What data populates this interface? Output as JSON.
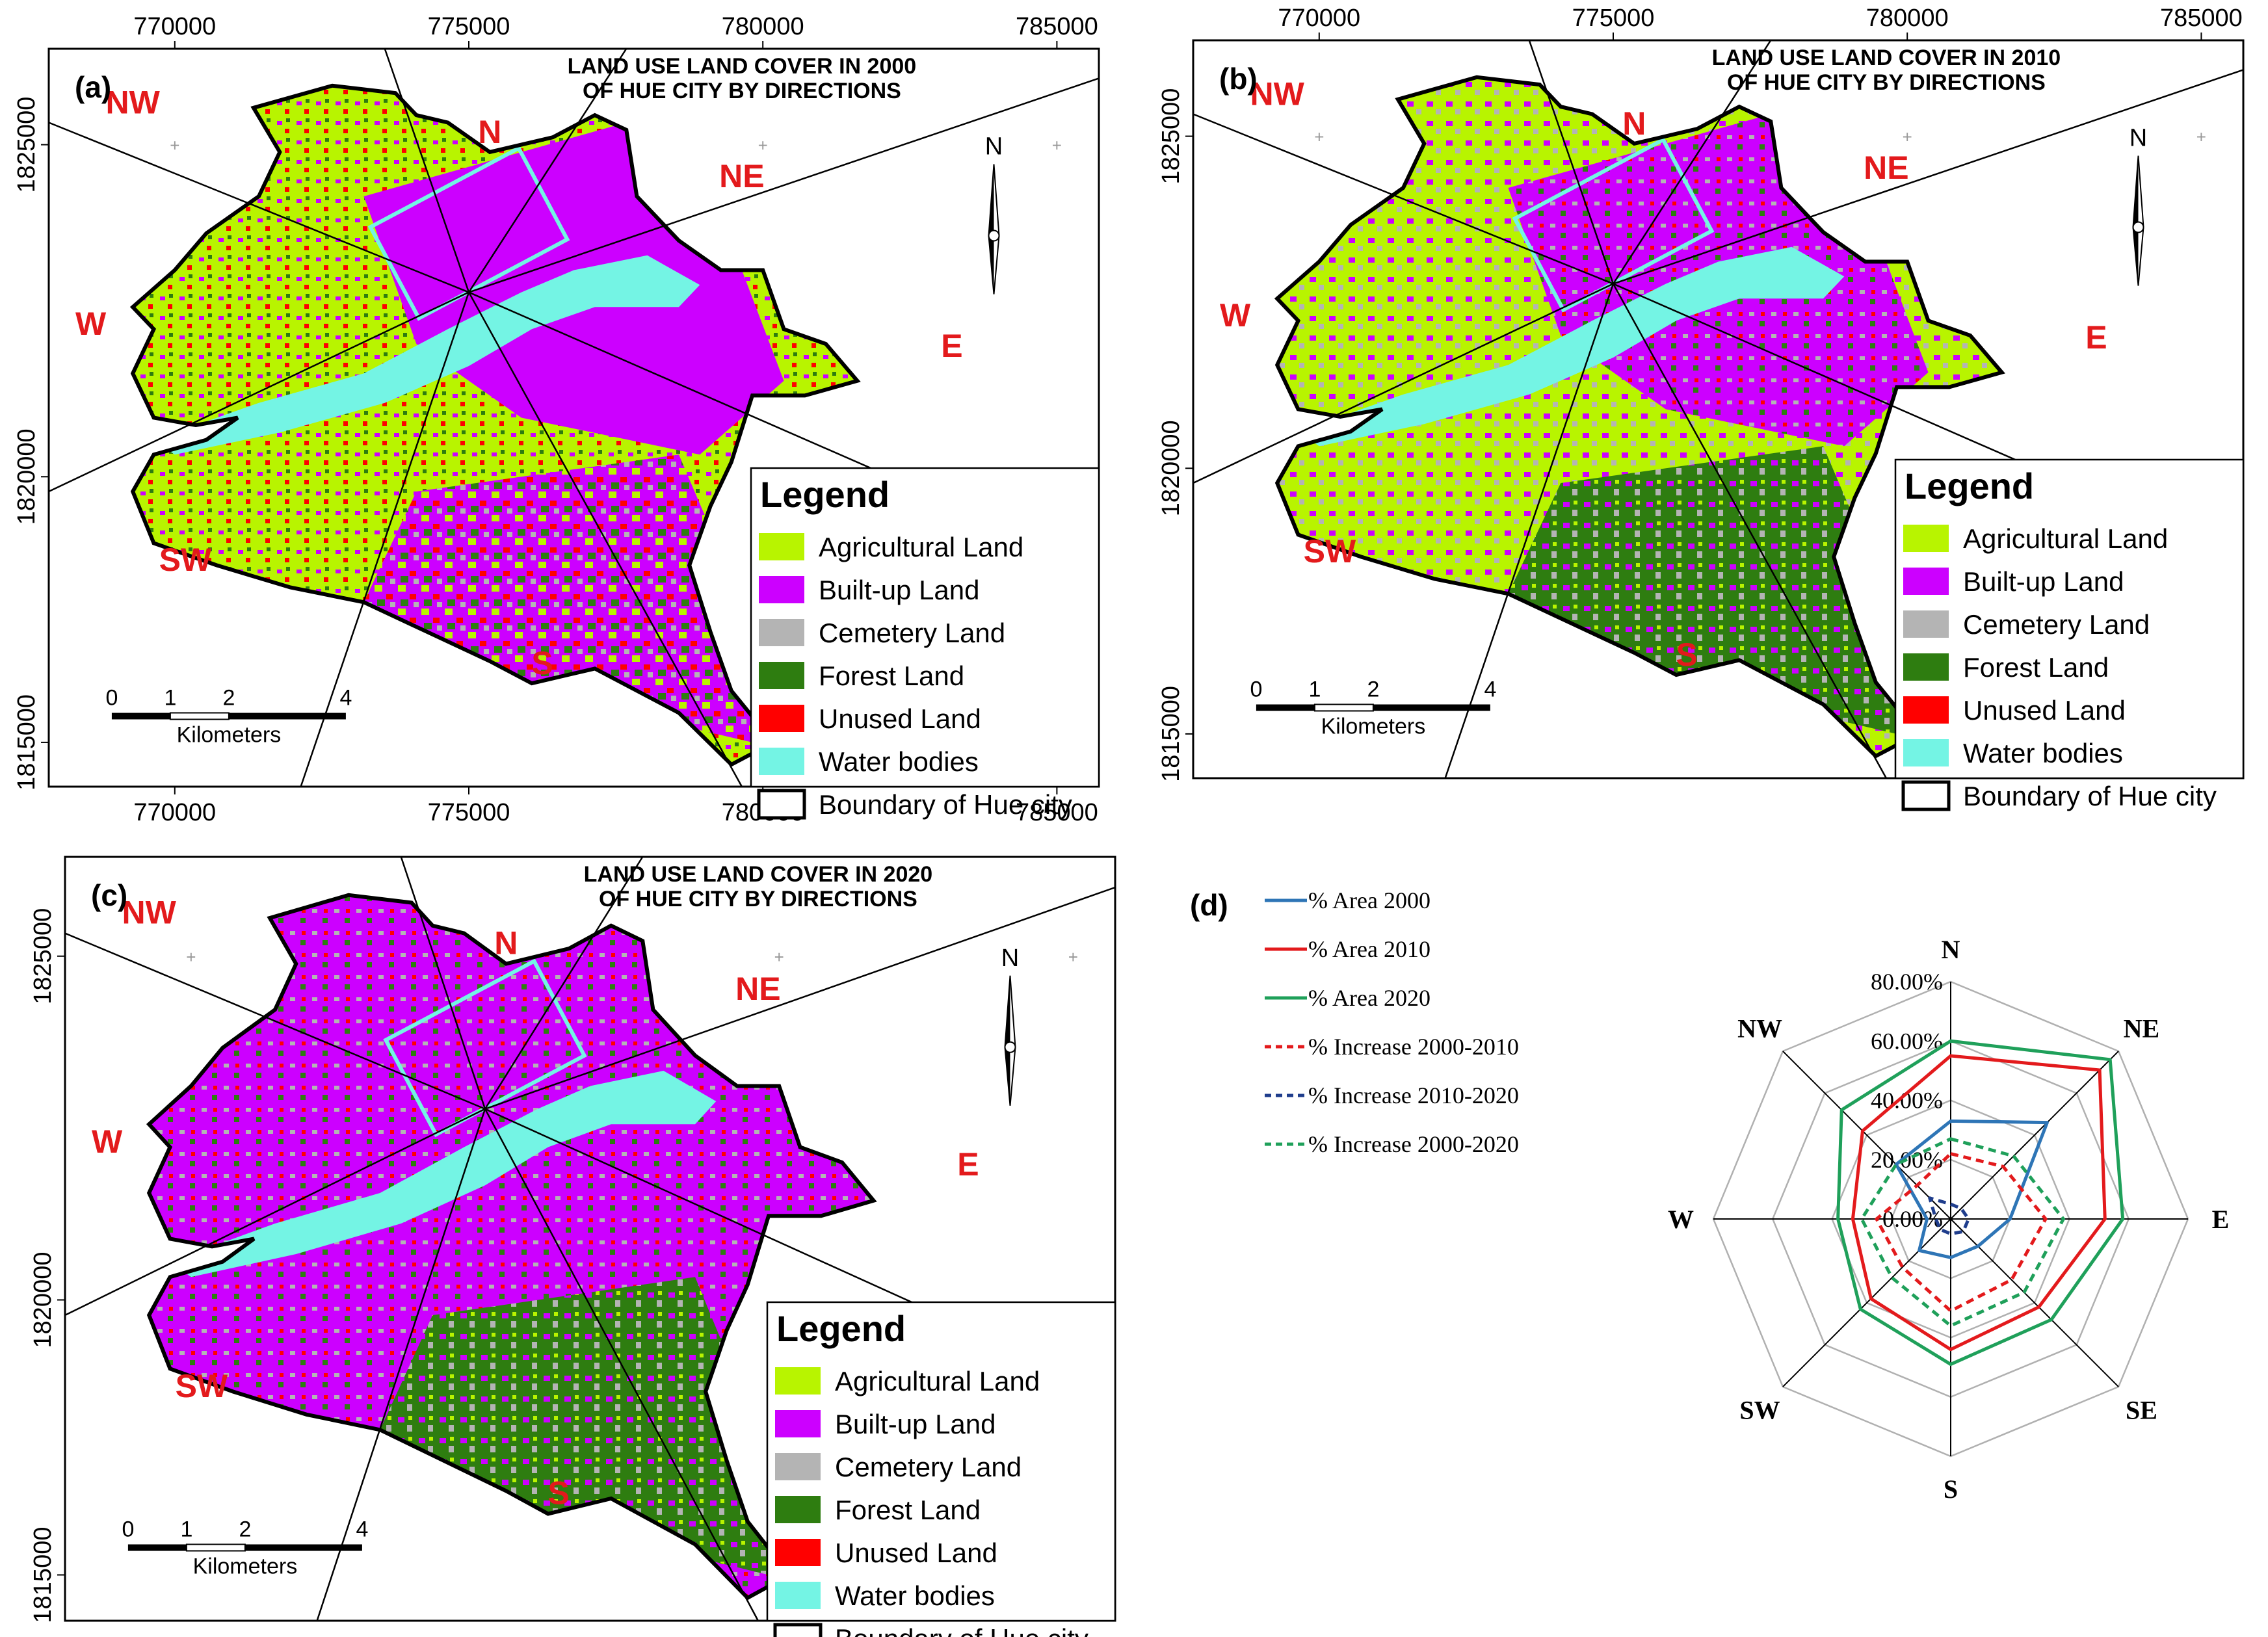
{
  "panels": [
    {
      "label": "(a)",
      "title_lines": [
        "LAND USE LAND COVER  IN 2000",
        "OF HUE CITY BY DIRECTIONS"
      ],
      "x_ticks": [
        "770000",
        "775000",
        "780000",
        "785000"
      ],
      "y_ticks": [
        "1825000",
        "1820000",
        "1815000"
      ],
      "scale": {
        "labels": [
          "0",
          "1",
          "2",
          "4"
        ],
        "unit": "Kilometers"
      }
    },
    {
      "label": "(b)",
      "title_lines": [
        "LAND USE LAND COVER  IN 2010",
        "OF HUE CITY BY DIRECTIONS"
      ],
      "x_ticks": [
        "770000",
        "775000",
        "780000",
        "785000"
      ],
      "y_ticks": [
        "1825000",
        "1820000",
        "1815000"
      ],
      "scale": {
        "labels": [
          "0",
          "1",
          "2",
          "4"
        ],
        "unit": "Kilometers"
      }
    },
    {
      "label": "(c)",
      "title_lines": [
        "LAND USE LAND COVER  IN 2020",
        "OF HUE CITY BY DIRECTIONS"
      ],
      "x_ticks": [],
      "y_ticks": [
        "1825000",
        "1820000",
        "1815000"
      ],
      "scale": {
        "labels": [
          "0",
          "1",
          "2",
          "4"
        ],
        "unit": "Kilometers"
      }
    }
  ],
  "directions": [
    "N",
    "NE",
    "E",
    "SE",
    "S",
    "SW",
    "W",
    "NW"
  ],
  "north_arrow_label": "N",
  "legend": {
    "title": "Legend",
    "items": [
      {
        "label": "Agricultural Land",
        "color": "#b8f400"
      },
      {
        "label": "Built-up Land",
        "color": "#cc00ff"
      },
      {
        "label": "Cemetery Land",
        "color": "#b4b4b4"
      },
      {
        "label": "Forest Land",
        "color": "#2e7d10"
      },
      {
        "label": "Unused Land",
        "color": "#ff0000"
      },
      {
        "label": "Water bodies",
        "color": "#74f4e4"
      },
      {
        "label": "Boundary of Hue city",
        "color": "#000000"
      }
    ]
  },
  "radar": {
    "label": "(d)",
    "directions": [
      "N",
      "NE",
      "E",
      "SE",
      "S",
      "SW",
      "W",
      "NW"
    ],
    "ring_labels": [
      "0.00%",
      "20.00%",
      "40.00%",
      "60.00%",
      "80.00%"
    ],
    "max": 80,
    "series": [
      {
        "name": "% Area 2000",
        "color": "#2e75b6",
        "dash": "solid",
        "values": [
          33,
          46,
          20,
          13,
          13,
          15,
          8,
          26
        ]
      },
      {
        "name": "% Area 2010",
        "color": "#e31a1c",
        "dash": "solid",
        "values": [
          55,
          71,
          52,
          42,
          44,
          38,
          33,
          42
        ]
      },
      {
        "name": "% Area 2020",
        "color": "#1fa05a",
        "dash": "solid",
        "values": [
          60,
          76,
          58,
          48,
          49,
          43,
          38,
          52
        ]
      },
      {
        "name": "% Increase 2000-2010",
        "color": "#e31a1c",
        "dash": "dashed",
        "values": [
          22,
          25,
          32,
          29,
          31,
          23,
          25,
          16
        ]
      },
      {
        "name": "% Increase 2010-2020",
        "color": "#1f3d8c",
        "dash": "dashed",
        "values": [
          5,
          5,
          6,
          6,
          5,
          5,
          5,
          10
        ]
      },
      {
        "name": "% Increase 2000-2020",
        "color": "#1fa05a",
        "dash": "dashed",
        "values": [
          27,
          30,
          38,
          35,
          36,
          28,
          30,
          26
        ]
      }
    ]
  }
}
